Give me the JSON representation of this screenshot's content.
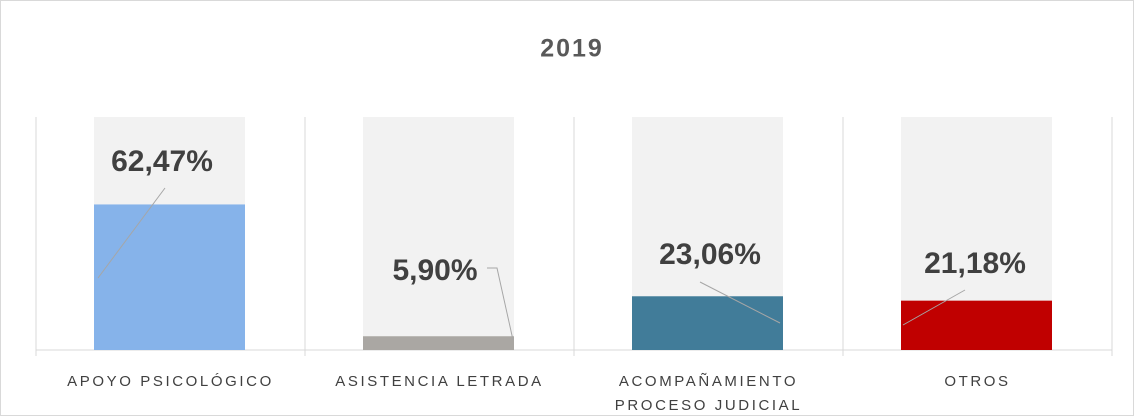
{
  "chart_data": {
    "type": "bar",
    "title": "2019",
    "categories": [
      "APOYO PSICOLÓGICO",
      "ASISTENCIA LETRADA",
      "ACOMPAÑAMIENTO PROCESO JUDICIAL",
      "OTROS"
    ],
    "values": [
      62.47,
      5.9,
      23.06,
      21.18
    ],
    "value_labels": [
      "62,47%",
      "5,90%",
      "23,06%",
      "21,18%"
    ],
    "colors": [
      "#86b3ea",
      "#aaa7a3",
      "#417c99",
      "#c00000"
    ],
    "background_color": "#f2f2f2",
    "ylim": [
      0,
      100
    ]
  }
}
